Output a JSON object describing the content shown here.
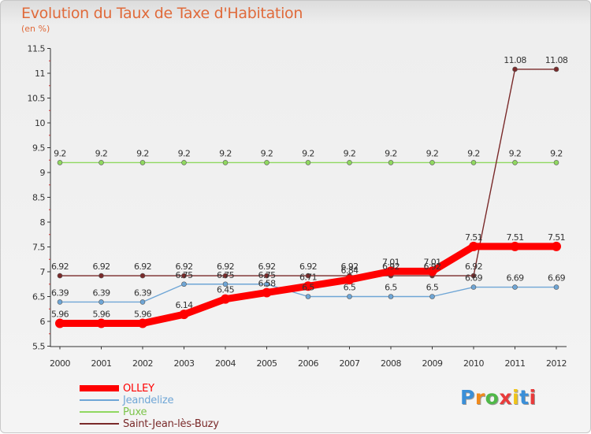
{
  "title": "Evolution du Taux de Taxe d'Habitation",
  "subtitle": "(en %)",
  "logo_text": "Proxiti",
  "chart_data": {
    "type": "line",
    "title": "Evolution du Taux de Taxe d'Habitation",
    "ylabel": "(en %)",
    "xlabel": "",
    "categories": [
      "2000",
      "2001",
      "2002",
      "2003",
      "2004",
      "2005",
      "2006",
      "2007",
      "2008",
      "2009",
      "2010",
      "2011",
      "2012"
    ],
    "yticks": [
      "5.5",
      "6",
      "6.5",
      "7",
      "7.5",
      "8",
      "8.5",
      "9",
      "9.5",
      "10",
      "10.5",
      "11",
      "11.5"
    ],
    "ylim": [
      5.5,
      11.5
    ],
    "grid": false,
    "legend_position": "bottom-left",
    "series": [
      {
        "name": "OLLEY",
        "color": "#ff0000",
        "values": [
          5.96,
          5.96,
          5.96,
          6.14,
          6.45,
          6.58,
          6.71,
          6.84,
          7.01,
          7.01,
          7.51,
          7.51,
          7.51
        ],
        "labels": [
          "5.96",
          "5.96",
          "5.96",
          "6.14",
          "6.45",
          "6.58",
          "6.71",
          "6.84",
          "7.01",
          "7.01",
          "7.51",
          "7.51",
          "7.51"
        ]
      },
      {
        "name": "Jeandelize",
        "color": "#6fa6d6",
        "values": [
          6.39,
          6.39,
          6.39,
          6.75,
          6.75,
          6.75,
          6.5,
          6.5,
          6.5,
          6.5,
          6.69,
          6.69,
          6.69
        ],
        "labels": [
          "6.39",
          "6.39",
          "6.39",
          "6.75",
          "6.75",
          "6.75",
          "6.5",
          "6.5",
          "6.5",
          "6.5",
          "6.69",
          "6.69",
          "6.69"
        ]
      },
      {
        "name": "Puxe",
        "color": "#90d860",
        "values": [
          9.2,
          9.2,
          9.2,
          9.2,
          9.2,
          9.2,
          9.2,
          9.2,
          9.2,
          9.2,
          9.2,
          9.2,
          9.2
        ],
        "labels": [
          "9.2",
          "9.2",
          "9.2",
          "9.2",
          "9.2",
          "9.2",
          "9.2",
          "9.2",
          "9.2",
          "9.2",
          "9.2",
          "9.2",
          "9.2"
        ]
      },
      {
        "name": "Saint-Jean-lès-Buzy",
        "color": "#7a2a2a",
        "values": [
          6.92,
          6.92,
          6.92,
          6.92,
          6.92,
          6.92,
          6.92,
          6.92,
          6.92,
          6.92,
          6.92,
          11.08,
          11.08
        ],
        "labels": [
          "6.92",
          "6.92",
          "6.92",
          "6.92",
          "6.92",
          "6.92",
          "6.92",
          "6.92",
          "6.92",
          "6.92",
          "6.92",
          "11.08",
          "11.08"
        ]
      }
    ]
  }
}
